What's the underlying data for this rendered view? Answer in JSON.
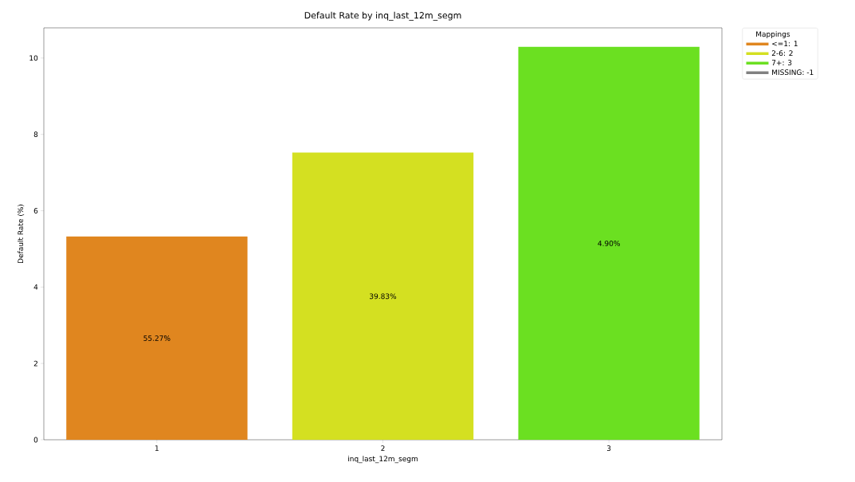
{
  "chart_data": {
    "type": "bar",
    "title": "Default Rate by inq_last_12m_segm",
    "xlabel": "inq_last_12m_segm",
    "ylabel": "Default Rate (%)",
    "legend_title": "Mappings",
    "categories": [
      "1",
      "2",
      "3"
    ],
    "series": [
      {
        "name": "<=1: 1",
        "color": "#e0861f",
        "values": [
          5.32,
          null,
          null
        ]
      },
      {
        "name": "2-6: 2",
        "color": "#d4e021",
        "values": [
          null,
          7.52,
          null
        ]
      },
      {
        "name": "7+: 3",
        "color": "#6be021",
        "values": [
          null,
          null,
          10.29
        ]
      },
      {
        "name": "MISSING: -1",
        "color": "#808080",
        "values": [
          null,
          null,
          null
        ]
      }
    ],
    "annotations": [
      "55.27%",
      "39.83%",
      "4.90%"
    ],
    "ylim": [
      0,
      10.79
    ],
    "yticks": [
      0,
      2,
      4,
      6,
      8,
      10
    ],
    "grid": false,
    "legend": "top right"
  }
}
